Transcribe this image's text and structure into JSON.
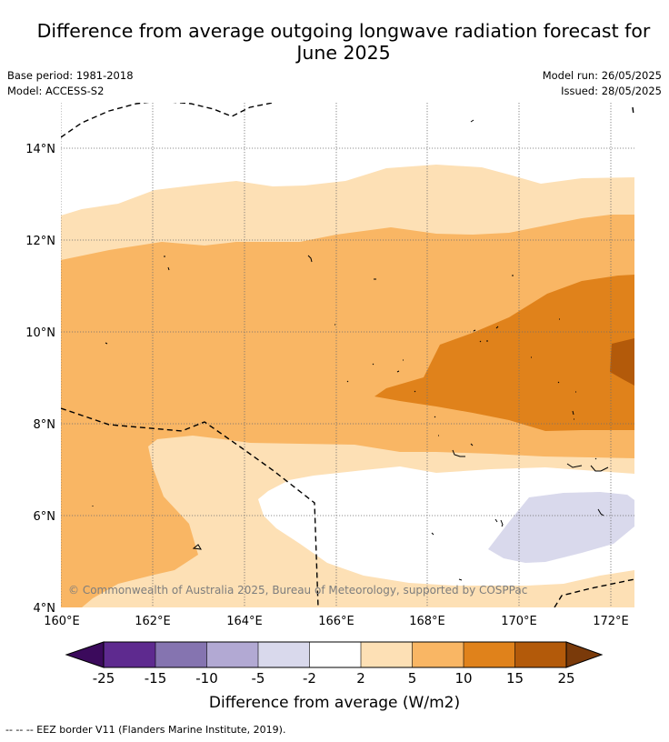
{
  "title": "Difference from average outgoing longwave radiation forecast for June 2025",
  "meta": {
    "base_period": "Base period: 1981-2018",
    "model": "Model: ACCESS-S2",
    "model_run": "Model run: 26/05/2025",
    "issued": "Issued: 28/05/2025"
  },
  "map": {
    "lon_range": [
      160,
      172.5
    ],
    "lat_range": [
      4,
      15
    ],
    "lon_ticks": [
      "160°E",
      "162°E",
      "164°E",
      "166°E",
      "168°E",
      "170°E",
      "172°E"
    ],
    "lat_ticks": [
      "14°N",
      "12°N",
      "10°N",
      "8°N",
      "6°N",
      "4°N"
    ],
    "copyright": "© Commonwealth of Australia 2025, Bureau of Meteorology, supported by COSPPac"
  },
  "colorbar": {
    "tick_labels": [
      "-25",
      "-15",
      "-10",
      "-5",
      "-2",
      "2",
      "5",
      "10",
      "15",
      "25"
    ],
    "label": "Difference from average (W/m2)",
    "colors": {
      "under": "#3b0a5c",
      "c1": "#5e2a8f",
      "c2": "#8574b0",
      "c3": "#b2a9d3",
      "c4": "#d9d9ec",
      "c5": "#ffffff",
      "c6": "#fde0b5",
      "c7": "#f9b664",
      "c8": "#e0821b",
      "c9": "#b35a0a",
      "over": "#7a3a0a"
    }
  },
  "footer": "--  --  -- EEZ border V11 (Flanders Marine Institute, 2019)."
}
